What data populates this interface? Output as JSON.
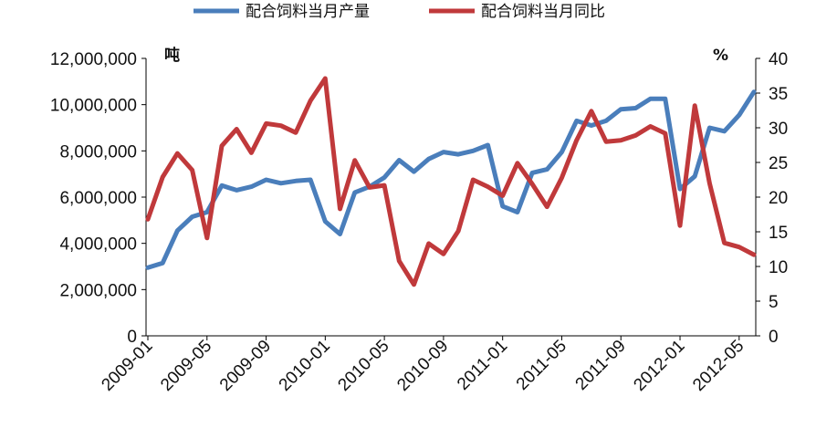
{
  "chart_data": {
    "type": "line",
    "title": "",
    "legend": {
      "placement": "top"
    },
    "grid": false,
    "x": [
      "2009-01",
      "2009-02",
      "2009-03",
      "2009-04",
      "2009-05",
      "2009-06",
      "2009-07",
      "2009-08",
      "2009-09",
      "2009-10",
      "2009-11",
      "2009-12",
      "2010-01",
      "2010-02",
      "2010-03",
      "2010-04",
      "2010-05",
      "2010-06",
      "2010-07",
      "2010-08",
      "2010-09",
      "2010-10",
      "2010-11",
      "2010-12",
      "2011-01",
      "2011-02",
      "2011-03",
      "2011-04",
      "2011-05",
      "2011-06",
      "2011-07",
      "2011-08",
      "2011-09",
      "2011-10",
      "2011-11",
      "2011-12",
      "2012-01",
      "2012-02",
      "2012-03",
      "2012-04",
      "2012-05",
      "2012-06"
    ],
    "x_tick_labels": [
      "2009-01",
      "2009-05",
      "2009-09",
      "2010-01",
      "2010-05",
      "2010-09",
      "2011-01",
      "2011-05",
      "2011-09",
      "2012-01",
      "2012-05"
    ],
    "y_left": {
      "unit_label": "吨",
      "range": [
        0,
        12000000
      ],
      "tick_labels": [
        "0",
        "2,000,000",
        "4,000,000",
        "6,000,000",
        "8,000,000",
        "10,000,000",
        "12,000,000"
      ]
    },
    "y_right": {
      "unit_label": "%",
      "range": [
        0,
        40
      ],
      "tick_labels": [
        "0",
        "5",
        "10",
        "15",
        "20",
        "25",
        "30",
        "35",
        "40"
      ]
    },
    "series": [
      {
        "name": "配合饲料当月产量",
        "axis": "left",
        "color": "#4a7ebb",
        "values": [
          2950000,
          3150000,
          4550000,
          5150000,
          5350000,
          6500000,
          6300000,
          6450000,
          6750000,
          6600000,
          6700000,
          6750000,
          4950000,
          4400000,
          6200000,
          6450000,
          6850000,
          7600000,
          7100000,
          7650000,
          7950000,
          7850000,
          8000000,
          8250000,
          5600000,
          5350000,
          7050000,
          7200000,
          7950000,
          9300000,
          9100000,
          9300000,
          9800000,
          9850000,
          10250000,
          10250000,
          6350000,
          6900000,
          9000000,
          8850000,
          9550000,
          10550000
        ]
      },
      {
        "name": "配合饲料当月同比",
        "axis": "right",
        "color": "#c0393b",
        "values": [
          16.8,
          22.9,
          26.3,
          23.9,
          14.1,
          27.4,
          29.8,
          26.4,
          30.6,
          30.3,
          29.3,
          33.9,
          37.1,
          18.3,
          25.3,
          21.4,
          21.7,
          10.8,
          7.4,
          13.3,
          11.8,
          15.1,
          22.5,
          21.5,
          20.2,
          24.9,
          21.9,
          18.6,
          22.8,
          28.2,
          32.4,
          28.0,
          28.2,
          28.9,
          30.2,
          29.2,
          15.9,
          33.2,
          22.0,
          13.4,
          12.8,
          11.7
        ]
      }
    ]
  }
}
